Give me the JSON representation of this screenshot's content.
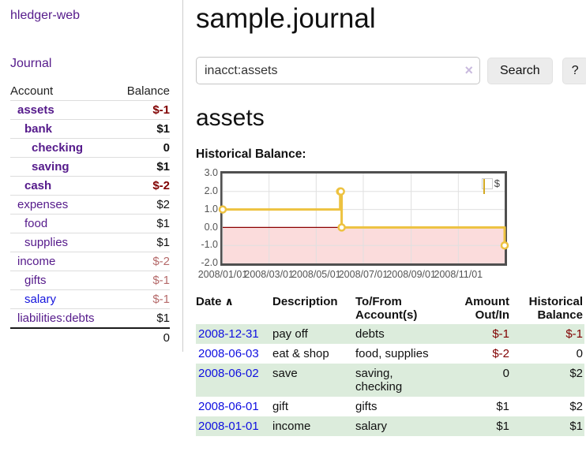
{
  "sidebar": {
    "brand": "hledger-web",
    "journal_link": "Journal",
    "accounts": {
      "headers": {
        "account": "Account",
        "balance": "Balance"
      },
      "rows": [
        {
          "name": "assets",
          "balance": "$-1",
          "level": 1,
          "bold": true
        },
        {
          "name": "bank",
          "balance": "$1",
          "level": 2,
          "bold": true
        },
        {
          "name": "checking",
          "balance": "0",
          "level": 3,
          "bold": true
        },
        {
          "name": "saving",
          "balance": "$1",
          "level": 3,
          "bold": true
        },
        {
          "name": "cash",
          "balance": "$-2",
          "level": 2,
          "bold": true
        },
        {
          "name": "expenses",
          "balance": "$2",
          "level": 1,
          "bold": false
        },
        {
          "name": "food",
          "balance": "$1",
          "level": 2,
          "bold": false
        },
        {
          "name": "supplies",
          "balance": "$1",
          "level": 2,
          "bold": false
        },
        {
          "name": "income",
          "balance": "$-2",
          "level": 1,
          "bold": false
        },
        {
          "name": "gifts",
          "balance": "$-1",
          "level": 2,
          "bold": false
        },
        {
          "name": "salary",
          "balance": "$-1",
          "level": 2,
          "bold": false,
          "highlight": "blue"
        },
        {
          "name": "liabilities:debts",
          "balance": "$1",
          "level": 1,
          "bold": false
        }
      ],
      "total": "0"
    }
  },
  "header": {
    "title": "sample.journal"
  },
  "search": {
    "value": "inacct:assets",
    "clear_icon": "×",
    "button_label": "Search",
    "help_label": "?"
  },
  "account_page": {
    "title": "assets",
    "chart_title": "Historical Balance:"
  },
  "chart_data": {
    "type": "line",
    "interpolation": "step-after",
    "title": "Historical Balance",
    "series": [
      {
        "name": "$",
        "color": "#edc240",
        "points": [
          {
            "date": "2008-01-01",
            "value": 1.0
          },
          {
            "date": "2008-06-01",
            "value": 2.0
          },
          {
            "date": "2008-06-02",
            "value": 2.0
          },
          {
            "date": "2008-06-03",
            "value": 0.0
          },
          {
            "date": "2008-12-31",
            "value": -1.0
          }
        ]
      }
    ],
    "x_range": [
      "2008-01-01",
      "2008-12-31"
    ],
    "x_ticks": [
      "2008/01/01",
      "2008/03/01",
      "2008/05/01",
      "2008/07/01",
      "2008/09/01",
      "2008/11/01"
    ],
    "y_ticks": [
      3.0,
      2.0,
      1.0,
      0.0,
      -1.0,
      -2.0
    ],
    "ylim": [
      -2,
      3
    ],
    "grid": true,
    "legend": {
      "label": "$",
      "position": "top-right"
    },
    "negative_region_color": "#fbdcdc",
    "zero_line_color": "#8b0000",
    "grid_color": "#e0e0e0"
  },
  "register": {
    "headers": {
      "date": "Date",
      "sort_icon": "∧",
      "description": "Description",
      "accounts": "To/From Account(s)",
      "amount": "Amount Out/In",
      "balance": "Historical Balance"
    },
    "rows": [
      {
        "date": "2008-12-31",
        "description": "pay off",
        "accounts": "debts",
        "amount": "$-1",
        "balance": "$-1"
      },
      {
        "date": "2008-06-03",
        "description": "eat & shop",
        "accounts": "food, supplies",
        "amount": "$-2",
        "balance": "0"
      },
      {
        "date": "2008-06-02",
        "description": "save",
        "accounts": "saving, checking",
        "amount": "0",
        "balance": "$2"
      },
      {
        "date": "2008-06-01",
        "description": "gift",
        "accounts": "gifts",
        "amount": "$1",
        "balance": "$2"
      },
      {
        "date": "2008-01-01",
        "description": "income",
        "accounts": "salary",
        "amount": "$1",
        "balance": "$1"
      }
    ]
  }
}
